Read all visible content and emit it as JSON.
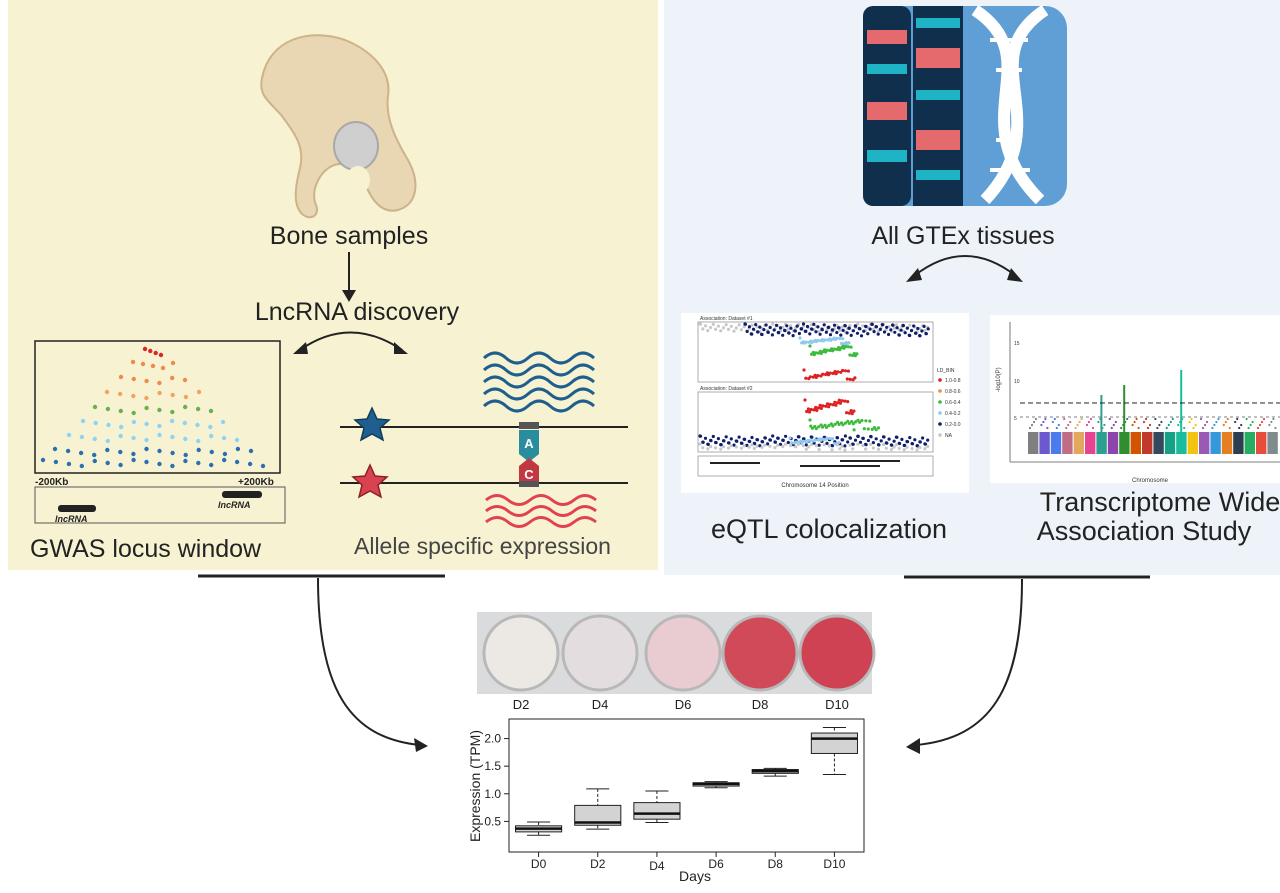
{
  "left_panel": {
    "bone_label": "Bone samples",
    "discovery_label": "LncRNA discovery",
    "gwas_label": "GWAS locus window",
    "gwas_left_tick": "-200Kb",
    "gwas_right_tick": "+200Kb",
    "lncrna_tag_1": "lncRNA",
    "lncrna_tag_2": "lncRNA",
    "ase_label": "Allele specific expression",
    "allele_a": "A",
    "allele_c": "C"
  },
  "right_panel": {
    "gtex_label": "All GTEx tissues",
    "eqtl_label": "eQTL colocalization",
    "twas_label_line1": "Transcriptome Wide",
    "twas_label_line2": "Association Study",
    "eqtl_dataset_1": "Association: Dataset #1",
    "eqtl_dataset_2": "Association: Dataset #2",
    "eqtl_xlabel": "Chromosome 14 Position",
    "eqtl_legend_title": "LD_BIN",
    "eqtl_legend_items": [
      "1.0-0.8",
      "0.8-0.6",
      "0.6-0.4",
      "0.4-0.2",
      "0.2-0.0",
      "NA"
    ],
    "twas_ylabel": "-log10(P)",
    "twas_xlabel": "Chromosome",
    "twas_yticks": [
      "15",
      "10",
      "5"
    ]
  },
  "wells": {
    "labels": [
      "D2",
      "D4",
      "D6",
      "D8",
      "D10"
    ],
    "colors": [
      "#ece9e4",
      "#e3dde0",
      "#e8ccd2",
      "#d04a5a",
      "#cf4253"
    ]
  },
  "chart_data": {
    "type": "box",
    "xlabel": "Days",
    "ylabel": "Expression (TPM)",
    "categories": [
      "D0",
      "D2",
      "D4",
      "D6",
      "D8",
      "D10"
    ],
    "ylim": [
      0.0,
      2.3
    ],
    "yticks": [
      0.5,
      1.0,
      1.5,
      2.0
    ],
    "ytick_labels": [
      "0.5",
      "1.0",
      "1.5",
      "2.0"
    ],
    "boxes": [
      {
        "min": 0.25,
        "q1": 0.31,
        "median": 0.37,
        "q3": 0.42,
        "max": 0.49
      },
      {
        "min": 0.36,
        "q1": 0.43,
        "median": 0.48,
        "q3": 0.79,
        "max": 1.09
      },
      {
        "min": 0.48,
        "q1": 0.54,
        "median": 0.64,
        "q3": 0.84,
        "max": 1.05
      },
      {
        "min": 1.11,
        "q1": 1.14,
        "median": 1.18,
        "q3": 1.2,
        "max": 1.22
      },
      {
        "min": 1.32,
        "q1": 1.37,
        "median": 1.41,
        "q3": 1.44,
        "max": 1.46
      },
      {
        "min": 1.35,
        "q1": 1.73,
        "median": 2.0,
        "q3": 2.1,
        "max": 2.2
      }
    ]
  }
}
